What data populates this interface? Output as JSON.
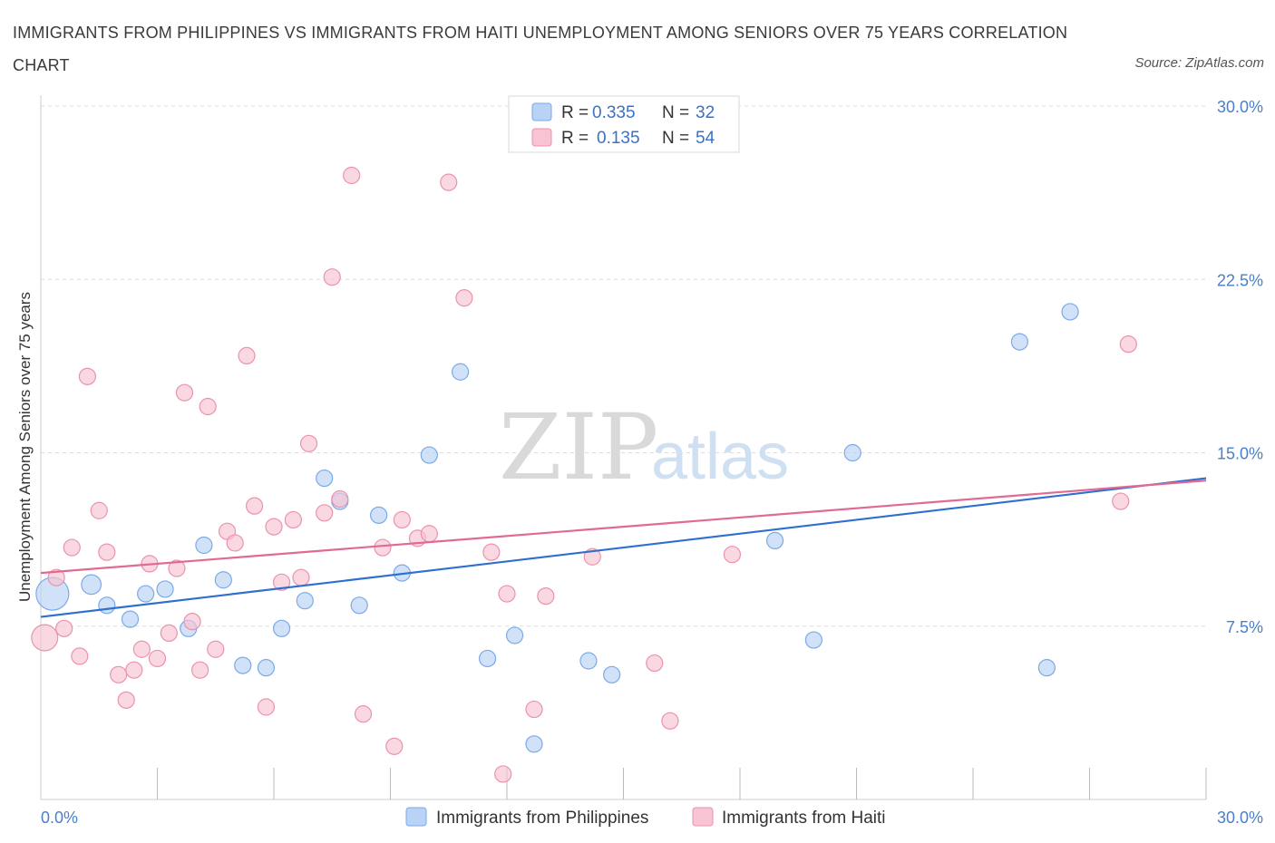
{
  "header": {
    "title": "IMMIGRANTS FROM PHILIPPINES VS IMMIGRANTS FROM HAITI UNEMPLOYMENT AMONG SENIORS OVER 75 YEARS CORRELATION CHART",
    "source": "Source: ZipAtlas.com"
  },
  "watermark": {
    "zip": "ZIP",
    "atlas": "atlas"
  },
  "legend": {
    "r_label": "R =",
    "n_label": "N =",
    "items": [
      {
        "r": "0.335",
        "n": "32",
        "fill": "#b8d3f5",
        "stroke": "#7aaae6"
      },
      {
        "r": "0.135",
        "n": "54",
        "fill": "#f8c3d2",
        "stroke": "#eb92ad"
      }
    ]
  },
  "chart_data": {
    "type": "scatter",
    "xlabel": "",
    "ylabel": "Unemployment Among Seniors over 75 years",
    "xlim": [
      0,
      30
    ],
    "ylim": [
      0,
      30
    ],
    "x_tick_labels": [
      "0.0%",
      "30.0%"
    ],
    "y_ticks": [
      7.5,
      15,
      22.5,
      30
    ],
    "y_tick_labels": [
      "7.5%",
      "15.0%",
      "22.5%",
      "30.0%"
    ],
    "grid": true,
    "legend_position": "top-center",
    "series": [
      {
        "name": "Immigrants from Philippines",
        "color": "#b8d3f5",
        "stroke": "#7aaae6",
        "line_color": "#2f6fcf",
        "trend": [
          [
            0,
            7.9
          ],
          [
            30,
            13.9
          ]
        ],
        "points": [
          [
            0.3,
            8.9,
            2.0
          ],
          [
            1.3,
            9.3,
            1.2
          ],
          [
            1.7,
            8.4,
            1
          ],
          [
            2.3,
            7.8,
            1
          ],
          [
            2.7,
            8.9,
            1
          ],
          [
            3.2,
            9.1,
            1
          ],
          [
            3.8,
            7.4,
            1
          ],
          [
            4.2,
            11.0,
            1
          ],
          [
            4.7,
            9.5,
            1
          ],
          [
            5.2,
            5.8,
            1
          ],
          [
            5.8,
            5.7,
            1
          ],
          [
            6.2,
            7.4,
            1
          ],
          [
            6.8,
            8.6,
            1
          ],
          [
            7.3,
            13.9,
            1
          ],
          [
            7.7,
            12.9,
            1
          ],
          [
            8.2,
            8.4,
            1
          ],
          [
            8.7,
            12.3,
            1
          ],
          [
            9.3,
            9.8,
            1
          ],
          [
            10.0,
            14.9,
            1
          ],
          [
            10.8,
            18.5,
            1
          ],
          [
            11.5,
            6.1,
            1
          ],
          [
            12.2,
            7.1,
            1
          ],
          [
            12.7,
            2.4,
            1
          ],
          [
            14.1,
            6.0,
            1
          ],
          [
            14.7,
            5.4,
            1
          ],
          [
            18.9,
            11.2,
            1
          ],
          [
            19.9,
            6.9,
            1
          ],
          [
            20.9,
            15.0,
            1
          ],
          [
            25.2,
            19.8,
            1
          ],
          [
            25.9,
            5.7,
            1
          ],
          [
            26.5,
            21.1,
            1
          ]
        ]
      },
      {
        "name": "Immigrants from Haiti",
        "color": "#f8c3d2",
        "stroke": "#eb92ad",
        "line_color": "#e06a93",
        "trend": [
          [
            0,
            9.8
          ],
          [
            30,
            13.8
          ]
        ],
        "points": [
          [
            0.1,
            7.0,
            1.6
          ],
          [
            0.4,
            9.6,
            1
          ],
          [
            0.6,
            7.4,
            1
          ],
          [
            0.8,
            10.9,
            1
          ],
          [
            1.0,
            6.2,
            1
          ],
          [
            1.2,
            18.3,
            1
          ],
          [
            1.5,
            12.5,
            1
          ],
          [
            1.7,
            10.7,
            1
          ],
          [
            2.0,
            5.4,
            1
          ],
          [
            2.2,
            4.3,
            1
          ],
          [
            2.4,
            5.6,
            1
          ],
          [
            2.6,
            6.5,
            1
          ],
          [
            2.8,
            10.2,
            1
          ],
          [
            3.0,
            6.1,
            1
          ],
          [
            3.3,
            7.2,
            1
          ],
          [
            3.5,
            10.0,
            1
          ],
          [
            3.7,
            17.6,
            1
          ],
          [
            3.9,
            7.7,
            1
          ],
          [
            4.1,
            5.6,
            1
          ],
          [
            4.3,
            17.0,
            1
          ],
          [
            4.5,
            6.5,
            1
          ],
          [
            4.8,
            11.6,
            1
          ],
          [
            5.0,
            11.1,
            1
          ],
          [
            5.3,
            19.2,
            1
          ],
          [
            5.5,
            12.7,
            1
          ],
          [
            5.8,
            4.0,
            1
          ],
          [
            6.0,
            11.8,
            1
          ],
          [
            6.2,
            9.4,
            1
          ],
          [
            6.5,
            12.1,
            1
          ],
          [
            6.7,
            9.6,
            1
          ],
          [
            6.9,
            15.4,
            1
          ],
          [
            7.3,
            12.4,
            1
          ],
          [
            7.5,
            22.6,
            1
          ],
          [
            7.7,
            13.0,
            1
          ],
          [
            8.0,
            27.0,
            1
          ],
          [
            8.3,
            3.7,
            1
          ],
          [
            8.8,
            10.9,
            1
          ],
          [
            9.1,
            2.3,
            1
          ],
          [
            9.3,
            12.1,
            1
          ],
          [
            9.7,
            11.3,
            1
          ],
          [
            10.0,
            11.5,
            1
          ],
          [
            10.5,
            26.7,
            1
          ],
          [
            10.9,
            21.7,
            1
          ],
          [
            11.6,
            10.7,
            1
          ],
          [
            11.9,
            1.1,
            1
          ],
          [
            12.0,
            8.9,
            1
          ],
          [
            12.7,
            3.9,
            1
          ],
          [
            13.0,
            8.8,
            1
          ],
          [
            14.2,
            10.5,
            1
          ],
          [
            15.8,
            5.9,
            1
          ],
          [
            16.2,
            3.4,
            1
          ],
          [
            17.8,
            10.6,
            1
          ],
          [
            27.8,
            12.9,
            1
          ],
          [
            28.0,
            19.7,
            1
          ]
        ]
      }
    ]
  }
}
